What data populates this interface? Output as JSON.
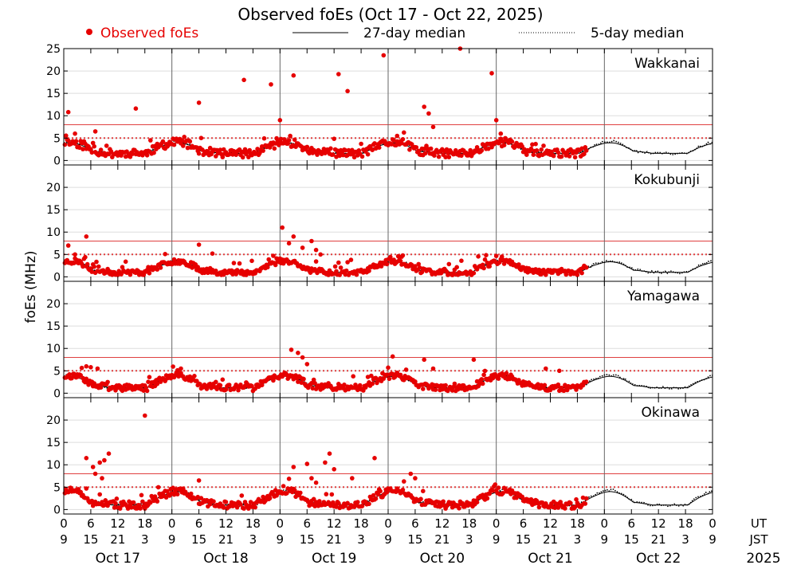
{
  "chart_data": {
    "type": "scatter",
    "title": "Observed foEs (Oct 17 - Oct 22, 2025)",
    "ylabel": "foEs (MHz)",
    "legend": {
      "observed": "Observed foEs",
      "median27": "27-day median",
      "median5": "5-day median"
    },
    "ylim": [
      -1,
      25
    ],
    "yticks": [
      0,
      5,
      10,
      15,
      20,
      25
    ],
    "reference_lines": {
      "dotted": 5,
      "solid": 8
    },
    "x_hours_range": [
      0,
      144
    ],
    "ut_ticks": [
      "0",
      "6",
      "12",
      "18",
      "0",
      "6",
      "12",
      "18",
      "0",
      "6",
      "12",
      "18",
      "0",
      "6",
      "12",
      "18",
      "0",
      "6",
      "12",
      "18",
      "0",
      "6",
      "12",
      "18",
      "0"
    ],
    "jst_ticks": [
      "9",
      "15",
      "21",
      "3",
      "9",
      "15",
      "21",
      "3",
      "9",
      "15",
      "21",
      "3",
      "9",
      "15",
      "21",
      "3",
      "9",
      "15",
      "21",
      "3",
      "9",
      "15",
      "21",
      "3",
      "9"
    ],
    "ut_label": "UT",
    "jst_label": "JST",
    "days": [
      "Oct 17",
      "Oct 18",
      "Oct 19",
      "Oct 20",
      "Oct 21",
      "Oct 22"
    ],
    "year": "2025",
    "observed_until_hour": 116,
    "colors": {
      "observed": "#e60000",
      "refline": "#e04040",
      "median": "#000000",
      "grid": "#dddddd"
    },
    "stations": [
      {
        "name": "Wakkanai",
        "base": 1.6,
        "amp": 2.2,
        "noise": 0.9,
        "seed": 11,
        "outliers": [
          {
            "x": 1,
            "y": 10.8
          },
          {
            "x": 16,
            "y": 11.6
          },
          {
            "x": 30,
            "y": 12.9
          },
          {
            "x": 40,
            "y": 18
          },
          {
            "x": 46,
            "y": 17
          },
          {
            "x": 48,
            "y": 9
          },
          {
            "x": 51,
            "y": 19
          },
          {
            "x": 61,
            "y": 19.3
          },
          {
            "x": 63,
            "y": 15.5
          },
          {
            "x": 71,
            "y": 23.5
          },
          {
            "x": 74,
            "y": 5.5
          },
          {
            "x": 80,
            "y": 12
          },
          {
            "x": 81,
            "y": 10.5
          },
          {
            "x": 82,
            "y": 7.5
          },
          {
            "x": 88,
            "y": 25
          },
          {
            "x": 95,
            "y": 19.5
          },
          {
            "x": 96,
            "y": 9
          },
          {
            "x": 97,
            "y": 6
          },
          {
            "x": 2.5,
            "y": 6
          },
          {
            "x": 7,
            "y": 6.5
          }
        ]
      },
      {
        "name": "Kokubunji",
        "base": 1.0,
        "amp": 2.2,
        "noise": 0.6,
        "seed": 23,
        "outliers": [
          {
            "x": 1,
            "y": 7
          },
          {
            "x": 5,
            "y": 9
          },
          {
            "x": 2.5,
            "y": 5
          },
          {
            "x": 30,
            "y": 7.2
          },
          {
            "x": 33,
            "y": 5.2
          },
          {
            "x": 48.5,
            "y": 11
          },
          {
            "x": 50,
            "y": 7.5
          },
          {
            "x": 51,
            "y": 9
          },
          {
            "x": 53,
            "y": 6.5
          },
          {
            "x": 55,
            "y": 8
          },
          {
            "x": 56,
            "y": 6
          },
          {
            "x": 57,
            "y": 5
          },
          {
            "x": 75,
            "y": 4.5
          }
        ]
      },
      {
        "name": "Yamagawa",
        "base": 1.2,
        "amp": 2.4,
        "noise": 0.7,
        "seed": 37,
        "outliers": [
          {
            "x": 5,
            "y": 6
          },
          {
            "x": 6,
            "y": 5.8
          },
          {
            "x": 7.5,
            "y": 5.5
          },
          {
            "x": 26,
            "y": 5.5
          },
          {
            "x": 50.5,
            "y": 9.7
          },
          {
            "x": 52,
            "y": 9
          },
          {
            "x": 53,
            "y": 8
          },
          {
            "x": 54,
            "y": 6.5
          },
          {
            "x": 73,
            "y": 8.2
          },
          {
            "x": 80,
            "y": 7.5
          },
          {
            "x": 82,
            "y": 5.5
          },
          {
            "x": 91,
            "y": 7.5
          },
          {
            "x": 107,
            "y": 5.5
          },
          {
            "x": 110,
            "y": 5
          }
        ]
      },
      {
        "name": "Okinawa",
        "base": 1.0,
        "amp": 2.8,
        "noise": 0.8,
        "seed": 51,
        "outliers": [
          {
            "x": 5,
            "y": 11.5
          },
          {
            "x": 6.5,
            "y": 9.5
          },
          {
            "x": 7,
            "y": 8
          },
          {
            "x": 8,
            "y": 10.5
          },
          {
            "x": 9,
            "y": 11
          },
          {
            "x": 10,
            "y": 12.5
          },
          {
            "x": 8.5,
            "y": 7
          },
          {
            "x": 18,
            "y": 21
          },
          {
            "x": 30,
            "y": 6.5
          },
          {
            "x": 51,
            "y": 9.5
          },
          {
            "x": 54,
            "y": 10.2
          },
          {
            "x": 55,
            "y": 7
          },
          {
            "x": 56,
            "y": 6
          },
          {
            "x": 58,
            "y": 10.5
          },
          {
            "x": 59,
            "y": 12.5
          },
          {
            "x": 60,
            "y": 9
          },
          {
            "x": 64,
            "y": 7
          },
          {
            "x": 69,
            "y": 11.5
          },
          {
            "x": 77,
            "y": 8
          },
          {
            "x": 78,
            "y": 7
          }
        ]
      }
    ]
  }
}
